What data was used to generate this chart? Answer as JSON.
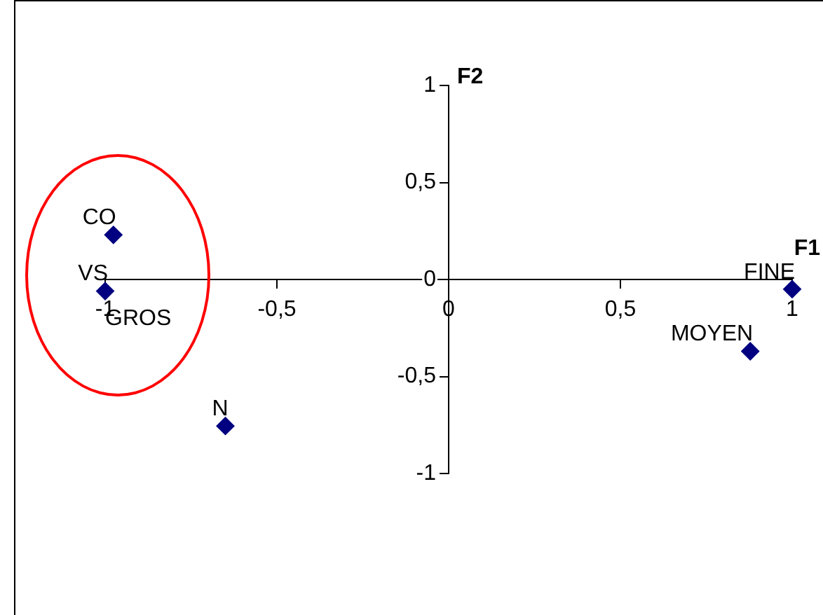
{
  "chart_data": {
    "type": "scatter",
    "xlabel": "F1",
    "ylabel": "F2",
    "x": [
      -0.976,
      -1.0,
      -0.65,
      1.0,
      0.878
    ],
    "series": [
      {
        "color": "#000080",
        "values": [
          0.23,
          -0.06,
          -0.755,
          -0.05,
          -0.37
        ]
      }
    ],
    "annotations": [
      {
        "text": "CO",
        "x": -0.976,
        "y": 0.23
      },
      {
        "text": "VS",
        "x": -1.0,
        "y": -0.06
      },
      {
        "text": "GROS",
        "x": -1.0,
        "y": -0.06
      },
      {
        "text": "N",
        "x": -0.65,
        "y": -0.755
      },
      {
        "text": "FINE",
        "x": 1.0,
        "y": -0.05
      },
      {
        "text": "MOYEN",
        "x": 0.878,
        "y": -0.37
      }
    ],
    "xlim": [
      -1,
      1
    ],
    "ylim": [
      -1,
      1
    ],
    "xticks": [
      -1,
      {
        "value": -0.5,
        "label": "-0,5"
      },
      0,
      {
        "value": 0.5,
        "label": "0,5"
      },
      1
    ],
    "yticks": [
      -1,
      {
        "value": -0.5,
        "label": "-0,5"
      },
      0,
      {
        "value": 0.5,
        "label": "0,5"
      },
      1
    ],
    "grid": false,
    "legend": false,
    "marker": "diamond"
  }
}
